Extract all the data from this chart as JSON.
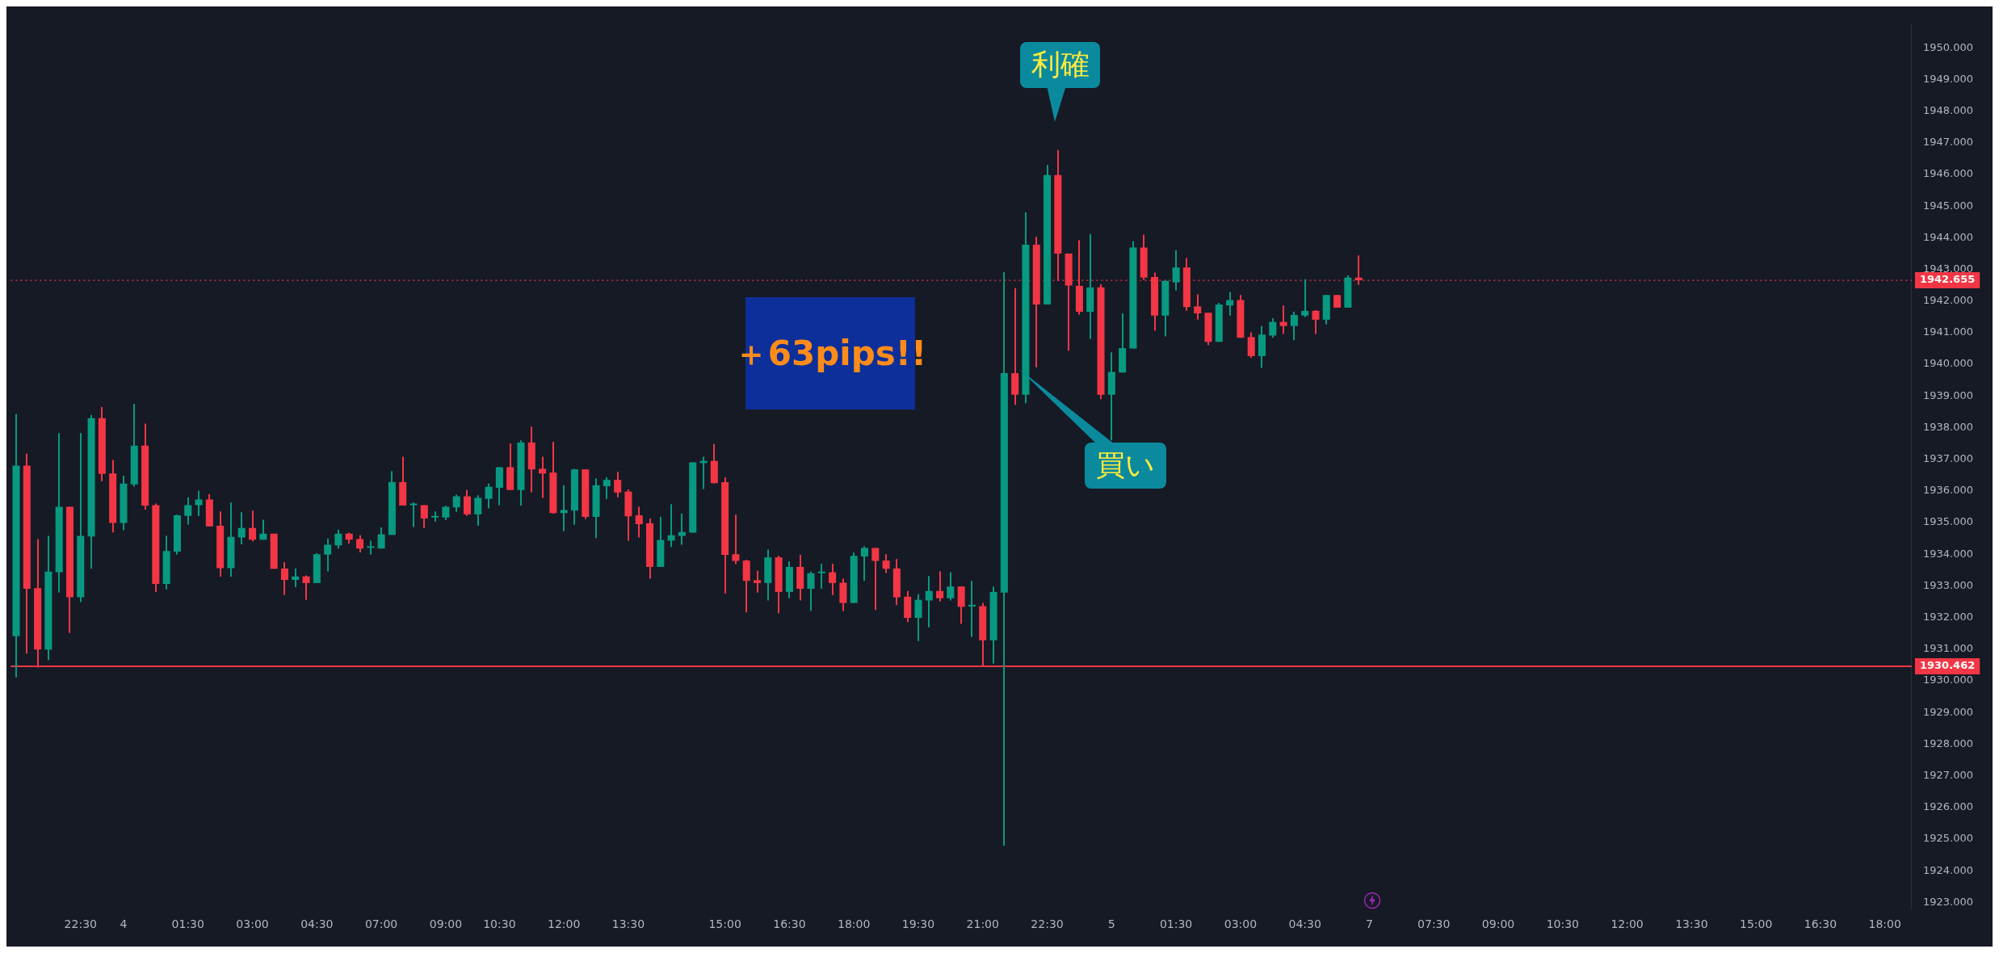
{
  "chart_data": {
    "type": "candlestick",
    "categories": [
      null,
      null,
      null,
      null,
      null,
      null,
      "22:30",
      null,
      null,
      null,
      "4",
      null,
      null,
      null,
      null,
      null,
      "01:30",
      null,
      null,
      null,
      null,
      null,
      "03:00",
      null,
      null,
      null,
      null,
      null,
      "04:30",
      null,
      null,
      null,
      null,
      null,
      "07:00",
      null,
      null,
      null,
      null,
      null,
      "09:00",
      null,
      null,
      null,
      null,
      "10:30",
      null,
      null,
      null,
      null,
      null,
      "12:00",
      null,
      null,
      null,
      null,
      null,
      "13:30",
      null,
      null,
      null,
      null,
      null,
      null,
      null,
      null,
      "15:00",
      null,
      null,
      null,
      null,
      null,
      "16:30",
      null,
      null,
      null,
      null,
      null,
      "18:00",
      null,
      null,
      null,
      null,
      null,
      "19:30",
      null,
      null,
      null,
      null,
      null,
      "21:00",
      null,
      null,
      null,
      null,
      null,
      "22:30",
      null,
      null,
      null,
      null,
      null,
      "5",
      null,
      null,
      null,
      null,
      null,
      "01:30",
      null,
      null,
      null,
      null,
      null,
      "03:00",
      null,
      null,
      null,
      null,
      null,
      "04:30",
      null,
      null,
      null,
      null,
      null,
      "7",
      null,
      null,
      null,
      null,
      null,
      "07:30",
      null,
      null,
      null,
      null,
      null,
      "09:00",
      null,
      null,
      null,
      null,
      null,
      "10:30",
      null,
      null,
      null,
      null,
      null,
      "12:00",
      null,
      null,
      null,
      null,
      null,
      "13:30",
      null,
      null,
      null,
      null,
      null,
      "15:00",
      null,
      null,
      null,
      null,
      null,
      "16:30",
      null,
      null,
      null,
      null,
      null,
      "18:00",
      null,
      null
    ],
    "ohlc": [
      [
        1931.41,
        1938.43,
        1930.11,
        1936.8
      ],
      [
        1936.8,
        1937.18,
        1930.86,
        1932.91
      ],
      [
        1932.93,
        1934.48,
        1930.42,
        1930.99
      ],
      [
        1930.99,
        1934.58,
        1930.66,
        1933.45
      ],
      [
        1933.43,
        1937.83,
        1932.79,
        1935.5
      ],
      [
        1935.5,
        1935.5,
        1931.51,
        1932.64
      ],
      [
        1932.64,
        1937.83,
        1932.49,
        1934.58
      ],
      [
        1934.56,
        1938.4,
        1933.54,
        1938.3
      ],
      [
        1938.3,
        1938.65,
        1936.31,
        1936.54
      ],
      [
        1936.55,
        1936.98,
        1934.69,
        1934.99
      ],
      [
        1934.99,
        1936.48,
        1934.76,
        1936.23
      ],
      [
        1936.21,
        1938.75,
        1936.14,
        1937.43
      ],
      [
        1937.43,
        1938.13,
        1935.41,
        1935.54
      ],
      [
        1935.55,
        1935.6,
        1932.81,
        1933.06
      ],
      [
        1933.06,
        1934.58,
        1932.89,
        1934.1
      ],
      [
        1934.08,
        1935.25,
        1933.99,
        1935.23
      ],
      [
        1935.21,
        1935.8,
        1934.94,
        1935.55
      ],
      [
        1935.55,
        1936.0,
        1935.21,
        1935.73
      ],
      [
        1935.73,
        1935.9,
        1934.88,
        1934.88
      ],
      [
        1934.9,
        1935.35,
        1933.29,
        1933.56
      ],
      [
        1933.56,
        1935.63,
        1933.29,
        1934.55
      ],
      [
        1934.53,
        1935.33,
        1934.31,
        1934.83
      ],
      [
        1934.83,
        1935.38,
        1934.41,
        1934.46
      ],
      [
        1934.46,
        1935.09,
        1934.46,
        1934.65
      ],
      [
        1934.65,
        1934.65,
        1933.54,
        1933.54
      ],
      [
        1933.55,
        1933.75,
        1932.71,
        1933.19
      ],
      [
        1933.19,
        1933.55,
        1932.96,
        1933.3
      ],
      [
        1933.3,
        1933.33,
        1932.56,
        1933.09
      ],
      [
        1933.09,
        1934.03,
        1933.09,
        1934.0
      ],
      [
        1933.99,
        1934.5,
        1933.46,
        1934.3
      ],
      [
        1934.28,
        1934.78,
        1934.18,
        1934.65
      ],
      [
        1934.65,
        1934.68,
        1934.34,
        1934.46
      ],
      [
        1934.48,
        1934.6,
        1934.06,
        1934.18
      ],
      [
        1934.2,
        1934.43,
        1933.99,
        1934.2
      ],
      [
        1934.18,
        1934.85,
        1934.18,
        1934.63
      ],
      [
        1934.61,
        1936.63,
        1934.61,
        1936.28
      ],
      [
        1936.28,
        1937.08,
        1935.54,
        1935.54
      ],
      [
        1935.55,
        1935.63,
        1934.86,
        1935.55
      ],
      [
        1935.55,
        1935.55,
        1934.83,
        1935.13
      ],
      [
        1935.16,
        1935.35,
        1935.03,
        1935.16
      ],
      [
        1935.16,
        1935.53,
        1935.08,
        1935.5
      ],
      [
        1935.48,
        1935.88,
        1935.34,
        1935.83
      ],
      [
        1935.83,
        1936.03,
        1935.21,
        1935.26
      ],
      [
        1935.26,
        1935.86,
        1934.9,
        1935.78
      ],
      [
        1935.75,
        1936.23,
        1935.45,
        1936.13
      ],
      [
        1936.1,
        1936.75,
        1935.55,
        1936.75
      ],
      [
        1936.75,
        1937.5,
        1936.03,
        1936.03
      ],
      [
        1936.03,
        1937.6,
        1935.54,
        1937.53
      ],
      [
        1937.53,
        1938.03,
        1935.95,
        1936.68
      ],
      [
        1936.7,
        1937.08,
        1935.78,
        1936.55
      ],
      [
        1936.58,
        1937.55,
        1935.28,
        1935.3
      ],
      [
        1935.3,
        1936.18,
        1934.73,
        1935.4
      ],
      [
        1935.38,
        1936.7,
        1934.93,
        1936.68
      ],
      [
        1936.68,
        1936.68,
        1935.11,
        1935.18
      ],
      [
        1935.18,
        1936.4,
        1934.51,
        1936.18
      ],
      [
        1936.15,
        1936.43,
        1935.75,
        1936.35
      ],
      [
        1936.35,
        1936.6,
        1935.8,
        1935.95
      ],
      [
        1935.98,
        1936.05,
        1934.43,
        1935.2
      ],
      [
        1935.23,
        1935.5,
        1934.53,
        1934.95
      ],
      [
        1934.98,
        1935.13,
        1933.23,
        1933.6
      ],
      [
        1933.6,
        1935.18,
        1933.6,
        1934.45
      ],
      [
        1934.43,
        1935.58,
        1934.23,
        1934.6
      ],
      [
        1934.58,
        1935.28,
        1934.3,
        1934.7
      ],
      [
        1934.68,
        1936.9,
        1934.68,
        1936.9
      ],
      [
        1936.88,
        1937.08,
        1936.06,
        1936.95
      ],
      [
        1936.95,
        1937.48,
        1936.23,
        1936.25
      ],
      [
        1936.28,
        1936.43,
        1932.76,
        1933.98
      ],
      [
        1934.0,
        1935.25,
        1933.69,
        1933.79
      ],
      [
        1933.8,
        1933.83,
        1932.16,
        1933.16
      ],
      [
        1933.18,
        1933.48,
        1932.79,
        1933.09
      ],
      [
        1933.09,
        1934.15,
        1932.54,
        1933.9
      ],
      [
        1933.9,
        1933.95,
        1932.14,
        1932.81
      ],
      [
        1932.81,
        1933.78,
        1932.61,
        1933.6
      ],
      [
        1933.6,
        1933.98,
        1932.54,
        1932.91
      ],
      [
        1932.91,
        1933.45,
        1932.21,
        1933.4
      ],
      [
        1933.4,
        1933.7,
        1932.91,
        1933.4
      ],
      [
        1933.43,
        1933.7,
        1932.71,
        1933.09
      ],
      [
        1933.1,
        1933.23,
        1932.21,
        1932.46
      ],
      [
        1932.46,
        1934.05,
        1932.46,
        1933.95
      ],
      [
        1933.93,
        1934.25,
        1933.16,
        1934.2
      ],
      [
        1934.2,
        1934.2,
        1932.24,
        1933.79
      ],
      [
        1933.8,
        1934.0,
        1933.41,
        1933.54
      ],
      [
        1933.55,
        1933.85,
        1932.39,
        1932.64
      ],
      [
        1932.66,
        1932.84,
        1931.86,
        1931.99
      ],
      [
        1931.99,
        1932.74,
        1931.26,
        1932.56
      ],
      [
        1932.54,
        1933.31,
        1931.69,
        1932.84
      ],
      [
        1932.84,
        1933.46,
        1932.51,
        1932.61
      ],
      [
        1932.61,
        1933.43,
        1932.54,
        1932.98
      ],
      [
        1932.98,
        1932.98,
        1931.8,
        1932.34
      ],
      [
        1932.35,
        1933.16,
        1931.39,
        1932.35
      ],
      [
        1932.36,
        1932.46,
        1930.46,
        1931.28
      ],
      [
        1931.28,
        1932.98,
        1930.55,
        1932.81
      ],
      [
        1932.79,
        1942.91,
        1924.79,
        1939.72
      ],
      [
        1939.72,
        1942.41,
        1938.72,
        1939.04
      ],
      [
        1939.04,
        1944.8,
        1938.77,
        1943.78
      ],
      [
        1943.78,
        1944.03,
        1939.91,
        1941.89
      ],
      [
        1941.89,
        1946.3,
        1941.89,
        1945.98
      ],
      [
        1945.98,
        1946.77,
        1942.63,
        1943.5
      ],
      [
        1943.5,
        1943.5,
        1940.43,
        1942.49
      ],
      [
        1942.48,
        1943.92,
        1941.57,
        1941.66
      ],
      [
        1941.66,
        1944.12,
        1940.8,
        1942.43
      ],
      [
        1942.43,
        1942.53,
        1938.9,
        1939.04
      ],
      [
        1939.04,
        1940.38,
        1937.6,
        1939.76
      ],
      [
        1939.74,
        1941.61,
        1939.74,
        1940.51
      ],
      [
        1940.5,
        1943.89,
        1940.5,
        1943.69
      ],
      [
        1943.69,
        1944.1,
        1942.66,
        1942.74
      ],
      [
        1942.76,
        1942.9,
        1941.06,
        1941.54
      ],
      [
        1941.54,
        1942.64,
        1940.88,
        1942.64
      ],
      [
        1942.59,
        1943.61,
        1942.34,
        1943.06
      ],
      [
        1943.06,
        1943.36,
        1941.69,
        1941.81
      ],
      [
        1941.83,
        1942.21,
        1941.41,
        1941.61
      ],
      [
        1941.63,
        1941.63,
        1940.61,
        1940.71
      ],
      [
        1940.71,
        1941.94,
        1940.71,
        1941.89
      ],
      [
        1941.86,
        1942.28,
        1941.54,
        1942.03
      ],
      [
        1942.03,
        1942.19,
        1940.84,
        1940.84
      ],
      [
        1940.86,
        1941.01,
        1940.21,
        1940.26
      ],
      [
        1940.26,
        1941.21,
        1939.89,
        1940.94
      ],
      [
        1940.91,
        1941.46,
        1940.84,
        1941.34
      ],
      [
        1941.34,
        1941.86,
        1940.96,
        1941.21
      ],
      [
        1941.21,
        1941.66,
        1940.76,
        1941.56
      ],
      [
        1941.54,
        1942.69,
        1941.49,
        1941.69
      ],
      [
        1941.69,
        1941.71,
        1940.96,
        1941.41
      ],
      [
        1941.41,
        1942.19,
        1941.26,
        1942.19
      ],
      [
        1942.19,
        1942.19,
        1941.79,
        1941.79
      ],
      [
        1941.79,
        1942.81,
        1941.79,
        1942.74
      ],
      [
        1942.74,
        1943.44,
        1942.51,
        1942.655
      ],
      null,
      null,
      null,
      null,
      null,
      null,
      null,
      null,
      null,
      null,
      null,
      null,
      null,
      null,
      null,
      null,
      null,
      null,
      null,
      null,
      null,
      null,
      null,
      null,
      null,
      null,
      null,
      null,
      null,
      null,
      null,
      null,
      null,
      null,
      null,
      null,
      null,
      null,
      null,
      null,
      null,
      null,
      null,
      null,
      null,
      null,
      null,
      null,
      null,
      null,
      null
    ],
    "colors": [
      "#089981",
      "#f23645",
      "#f23645",
      "#089981",
      "#089981",
      "#f23645",
      "#089981",
      "#089981",
      "#f23645",
      "#f23645",
      "#089981",
      "#089981",
      "#f23645",
      "#f23645",
      "#089981",
      "#089981",
      "#089981",
      "#089981",
      "#f23645",
      "#f23645",
      "#089981",
      "#089981",
      "#f23645",
      "#089981",
      "#f23645",
      "#f23645",
      "#089981",
      "#f23645",
      "#089981",
      "#089981",
      "#089981",
      "#f23645",
      "#f23645",
      "#089981",
      "#089981",
      "#089981",
      "#f23645",
      "#089981",
      "#f23645",
      "#089981",
      "#089981",
      "#089981",
      "#f23645",
      "#089981",
      "#089981",
      "#089981",
      "#f23645",
      "#089981",
      "#f23645",
      "#f23645",
      "#f23645",
      "#089981",
      "#089981",
      "#f23645",
      "#089981",
      "#089981",
      "#f23645",
      "#f23645",
      "#f23645",
      "#f23645",
      "#089981",
      "#089981",
      "#089981",
      "#089981",
      "#089981",
      "#f23645",
      "#f23645",
      "#f23645",
      "#f23645",
      "#f23645",
      "#089981",
      "#f23645",
      "#089981",
      "#f23645",
      "#089981",
      "#089981",
      "#f23645",
      "#f23645",
      "#089981",
      "#089981",
      "#f23645",
      "#f23645",
      "#f23645",
      "#f23645",
      "#089981",
      "#089981",
      "#f23645",
      "#089981",
      "#f23645",
      "#089981",
      "#f23645",
      "#089981",
      "#089981",
      "#f23645",
      "#089981",
      "#f23645",
      "#089981",
      "#f23645",
      "#f23645",
      "#f23645",
      "#089981",
      "#f23645",
      "#089981",
      "#089981",
      "#089981",
      "#f23645",
      "#f23645",
      "#089981",
      "#089981",
      "#f23645",
      "#f23645",
      "#f23645",
      "#089981",
      "#089981",
      "#f23645",
      "#f23645",
      "#089981",
      "#089981",
      "#f23645",
      "#089981",
      "#089981",
      "#f23645",
      "#089981",
      "#f23645",
      "#089981",
      "#f23645",
      null,
      null,
      null,
      null,
      null,
      null,
      null,
      null,
      null,
      null,
      null,
      null,
      null,
      null,
      null,
      null,
      null,
      null,
      null,
      null,
      null,
      null,
      null,
      null,
      null,
      null,
      null,
      null,
      null,
      null,
      null,
      null,
      null,
      null,
      null,
      null,
      null,
      null,
      null,
      null,
      null,
      null,
      null,
      null,
      null,
      null,
      null,
      null,
      null,
      null,
      null
    ],
    "ylim": [
      1922.8,
      1950.75
    ],
    "yticks": [
      {
        "value": 1923,
        "label": "1923.000"
      },
      {
        "value": 1924,
        "label": "1924.000"
      },
      {
        "value": 1925,
        "label": "1925.000"
      },
      {
        "value": 1926,
        "label": "1926.000"
      },
      {
        "value": 1927,
        "label": "1927.000"
      },
      {
        "value": 1928,
        "label": "1928.000"
      },
      {
        "value": 1929,
        "label": "1929.000"
      },
      {
        "value": 1930,
        "label": "1930.000"
      },
      {
        "value": 1931,
        "label": "1931.000"
      },
      {
        "value": 1932,
        "label": "1932.000"
      },
      {
        "value": 1933,
        "label": "1933.000"
      },
      {
        "value": 1934,
        "label": "1934.000"
      },
      {
        "value": 1935,
        "label": "1935.000"
      },
      {
        "value": 1936,
        "label": "1936.000"
      },
      {
        "value": 1937,
        "label": "1937.000"
      },
      {
        "value": 1938,
        "label": "1938.000"
      },
      {
        "value": 1939,
        "label": "1939.000"
      },
      {
        "value": 1940,
        "label": "1940.000"
      },
      {
        "value": 1941,
        "label": "1941.000"
      },
      {
        "value": 1942,
        "label": "1942.000"
      },
      {
        "value": 1943,
        "label": "1943.000"
      },
      {
        "value": 1944,
        "label": "1944.000"
      },
      {
        "value": 1945,
        "label": "1945.000"
      },
      {
        "value": 1946,
        "label": "1946.000"
      },
      {
        "value": 1947,
        "label": "1947.000"
      },
      {
        "value": 1948,
        "label": "1948.000"
      },
      {
        "value": 1949,
        "label": "1949.000"
      },
      {
        "value": 1950,
        "label": "1950.000"
      }
    ],
    "ref_lines": [
      {
        "axis": "y",
        "value": 1942.655,
        "label": "1942.655",
        "color": "#f23645",
        "line_style": "dotted"
      },
      {
        "axis": "y",
        "value": 1930.462,
        "label": "1930.462",
        "color": "#f23645",
        "line_style": "solid"
      }
    ],
    "annotations": [
      "利確",
      "買い",
      "＋63pips!!"
    ],
    "grid": false,
    "legend": false
  }
}
